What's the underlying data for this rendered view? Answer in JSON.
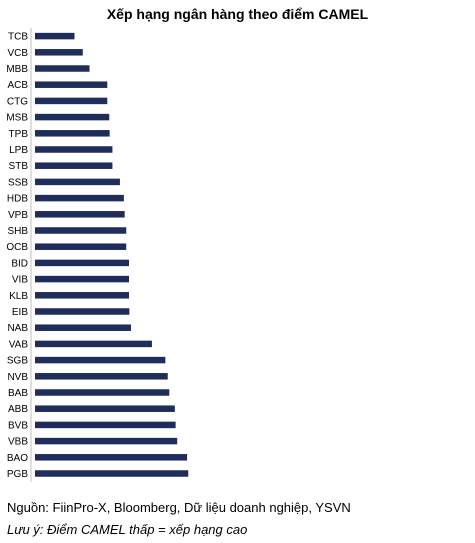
{
  "chart_data": {
    "type": "bar",
    "orientation": "horizontal",
    "title": "Xếp hạng ngân hàng theo điểm CAMEL",
    "categories": [
      "TCB",
      "VCB",
      "MBB",
      "ACB",
      "CTG",
      "MSB",
      "TPB",
      "LPB",
      "STB",
      "SSB",
      "HDB",
      "VPB",
      "SHB",
      "OCB",
      "BID",
      "VIB",
      "KLB",
      "EIB",
      "NAB",
      "VAB",
      "SGB",
      "NVB",
      "BAB",
      "ABB",
      "BVB",
      "VBB",
      "BAO",
      "PGB"
    ],
    "values": [
      1.0,
      1.21,
      1.38,
      1.83,
      1.83,
      1.88,
      1.89,
      1.96,
      1.96,
      2.15,
      2.25,
      2.27,
      2.31,
      2.31,
      2.38,
      2.38,
      2.38,
      2.39,
      2.43,
      2.96,
      3.3,
      3.36,
      3.4,
      3.54,
      3.56,
      3.6,
      3.85,
      3.88
    ],
    "color": "#1f2d5a",
    "xlabel": "",
    "ylabel": "",
    "grid": false,
    "legend": "none"
  },
  "source": "Nguồn: FiinPro-X, Bloomberg, Dữ liệu doanh nghiệp, YSVN",
  "note": "Lưu ý: Điểm CAMEL thấp = xếp hạng cao"
}
